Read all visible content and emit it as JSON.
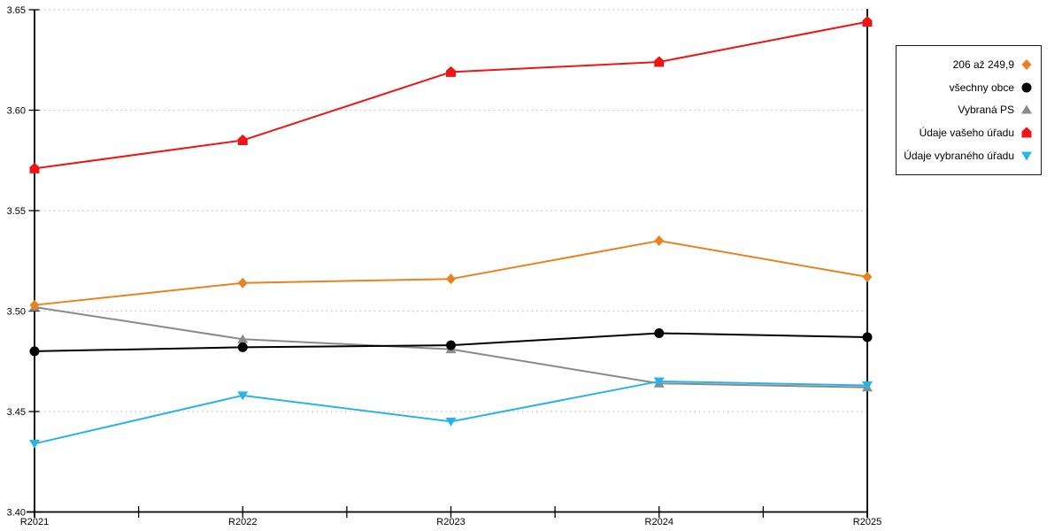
{
  "chart_data": {
    "type": "line",
    "title": "",
    "xlabel": "",
    "ylabel": "",
    "categories": [
      "R2021",
      "R2022",
      "R2023",
      "R2024",
      "R2025"
    ],
    "series": [
      {
        "name": "206 až 249,9",
        "marker": "diamond",
        "color": "#E8821F",
        "values": [
          3.503,
          3.514,
          3.516,
          3.535,
          3.517
        ]
      },
      {
        "name": "všechny obce",
        "marker": "circle",
        "color": "#000000",
        "values": [
          3.48,
          3.482,
          3.483,
          3.489,
          3.487
        ]
      },
      {
        "name": "Vybraná PS",
        "marker": "triangle-up",
        "color": "#8A8A8A",
        "values": [
          3.502,
          3.486,
          3.481,
          3.464,
          3.462
        ]
      },
      {
        "name": "Údaje vašeho úřadu",
        "marker": "pentagon",
        "color": "#F01515",
        "values": [
          3.571,
          3.585,
          3.619,
          3.624,
          3.644
        ]
      },
      {
        "name": "Údaje vybraného úřadu",
        "marker": "triangle-down",
        "color": "#29B4E8",
        "values": [
          3.434,
          3.458,
          3.445,
          3.465,
          3.463
        ]
      }
    ],
    "ylim": [
      3.4,
      3.65
    ],
    "yticks": [
      "3.40",
      "3.45",
      "3.50",
      "3.55",
      "3.60",
      "3.65"
    ],
    "grid": "horizontal-dotted",
    "grid_color": "#C9C9C9",
    "axis_color": "#000000",
    "legend_position": "right-outside-box"
  }
}
